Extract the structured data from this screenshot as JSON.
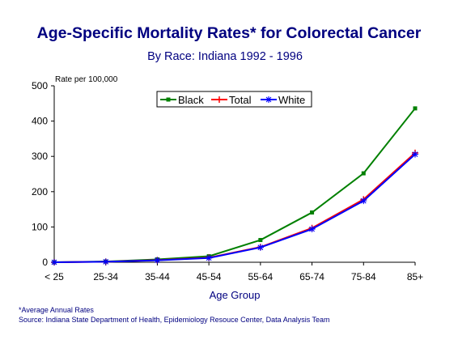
{
  "chart_data": {
    "type": "line",
    "title": "Age-Specific  Mortality Rates* for Colorectal Cancer",
    "subtitle": "By Race:  Indiana 1992 - 1996",
    "ylabel": "Rate per 100,000",
    "xlabel": "Age Group",
    "categories": [
      "< 25",
      "25-34",
      "35-44",
      "45-54",
      "55-64",
      "65-74",
      "75-84",
      "85+"
    ],
    "ylim": [
      0,
      500
    ],
    "yticks": [
      0,
      100,
      200,
      300,
      400,
      500
    ],
    "grid": false,
    "legend_placement": "top-center",
    "series": [
      {
        "name": "Black",
        "color": "#008000",
        "marker": "square",
        "values": [
          0.1,
          2,
          8,
          17,
          63,
          141,
          252,
          436
        ]
      },
      {
        "name": "Total",
        "color": "#ff0000",
        "marker": "plus",
        "values": [
          0.1,
          1.5,
          6,
          13,
          43,
          97,
          178,
          310
        ]
      },
      {
        "name": "White",
        "color": "#0000ff",
        "marker": "star",
        "values": [
          0.1,
          1.5,
          5.5,
          12,
          42,
          94,
          174,
          306
        ]
      }
    ]
  },
  "footnotes": {
    "average": "*Average Annual Rates",
    "source": "Source:  Indiana State Department of Health, Epidemiology Resouce Center, Data Analysis Team"
  }
}
